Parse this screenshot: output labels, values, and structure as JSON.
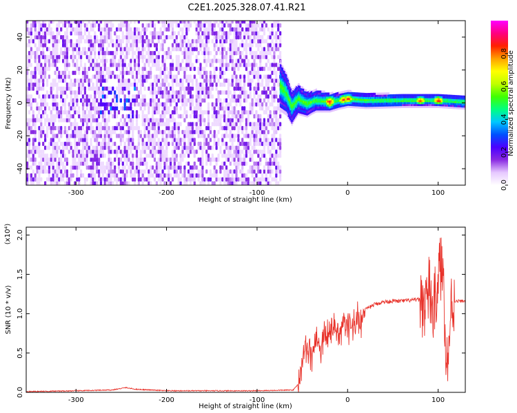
{
  "title": "C2E1.2025.328.07.41.R21",
  "chart_data": [
    {
      "type": "heatmap",
      "xlabel": "Height of straight line (km)",
      "ylabel": "Frequency (Hz)",
      "xlim": [
        -355,
        130
      ],
      "ylim": [
        -50,
        50
      ],
      "xticks": [
        -300,
        -200,
        -100,
        0,
        100
      ],
      "yticks": [
        -40,
        -20,
        0,
        20,
        40
      ],
      "grid": false,
      "colorbar": {
        "label": "Normalized spectral amplitude",
        "range": [
          0,
          1
        ],
        "ticks": [
          "0.0",
          "0.2",
          "0.4",
          "0.6",
          "0.8"
        ],
        "colors": [
          "#ffffff",
          "#e6c8ff",
          "#8a2be2",
          "#4b00ff",
          "#0050ff",
          "#00c8ff",
          "#00ff80",
          "#40ff00",
          "#c0ff00",
          "#ffff00",
          "#ffa000",
          "#ff2000",
          "#ff0080",
          "#ff00ff"
        ]
      },
      "noise_region": {
        "x_range": [
          -355,
          -75
        ],
        "amplitude": 0.15
      },
      "band": {
        "x_range": [
          -75,
          130
        ],
        "center_hz": [
          [
            -75,
            10
          ],
          [
            -68,
            5
          ],
          [
            -62,
            -3
          ],
          [
            -55,
            2
          ],
          [
            -45,
            -1
          ],
          [
            -35,
            1
          ],
          [
            -20,
            0
          ],
          [
            0,
            2
          ],
          [
            20,
            1
          ],
          [
            60,
            1
          ],
          [
            100,
            1
          ],
          [
            130,
            0
          ]
        ],
        "halfwidth_hz": [
          [
            -75,
            15
          ],
          [
            -60,
            10
          ],
          [
            -40,
            7
          ],
          [
            -10,
            5
          ],
          [
            60,
            4
          ],
          [
            130,
            4
          ]
        ],
        "peaks": [
          [
            -20,
            0.95
          ],
          [
            -5,
            0.9
          ],
          [
            0,
            0.9
          ],
          [
            80,
            0.95
          ],
          [
            100,
            1.0
          ]
        ]
      }
    },
    {
      "type": "line",
      "xlabel": "Height of straight line (km)",
      "ylabel": "SNR (10 * v/v)",
      "y_scale_label": "(x10⁴)",
      "xlim": [
        -355,
        130
      ],
      "ylim": [
        0,
        2.1
      ],
      "xticks": [
        -300,
        -200,
        -100,
        0,
        100
      ],
      "yticks": [
        "0.0",
        "0.5",
        "1.0",
        "1.5",
        "2.0"
      ],
      "series_color": "#e8322a",
      "series": [
        {
          "x": [
            -355,
            -300,
            -260,
            -245,
            -235,
            -200,
            -100,
            -60,
            -55,
            -50,
            -45,
            -40,
            -35,
            -30,
            -25,
            -20,
            -15,
            -10,
            -5,
            0,
            5,
            10,
            15,
            20,
            30,
            40,
            50,
            60,
            70,
            80,
            85,
            90,
            95,
            100,
            105,
            110,
            115,
            120,
            130
          ],
          "y": [
            0.01,
            0.02,
            0.03,
            0.06,
            0.04,
            0.02,
            0.02,
            0.03,
            0.1,
            0.4,
            0.55,
            0.45,
            0.65,
            0.55,
            0.75,
            0.7,
            0.85,
            0.65,
            0.9,
            0.8,
            0.85,
            0.95,
            0.9,
            1.05,
            1.12,
            1.15,
            1.16,
            1.16,
            1.17,
            1.18,
            1.1,
            1.3,
            1.0,
            1.5,
            1.6,
            0.3,
            1.15,
            1.16,
            1.16
          ]
        }
      ]
    }
  ]
}
